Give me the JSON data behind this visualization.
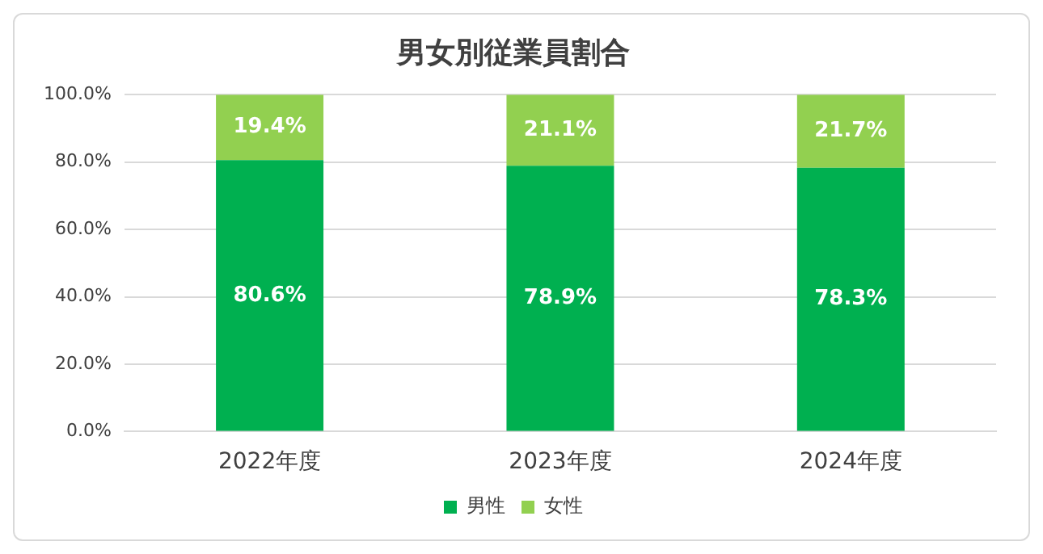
{
  "chart_data": {
    "type": "bar",
    "title": "男女別従業員割合",
    "categories": [
      "2022年度",
      "2023年度",
      "2024年度"
    ],
    "stacked": true,
    "series": [
      {
        "name": "男性",
        "color": "#00b050",
        "values": [
          80.6,
          78.9,
          78.3
        ],
        "value_labels": [
          "80.6%",
          "78.9%",
          "78.3%"
        ]
      },
      {
        "name": "女性",
        "color": "#92d050",
        "values": [
          19.4,
          21.1,
          21.7
        ],
        "value_labels": [
          "19.4%",
          "21.1%",
          "21.7%"
        ]
      }
    ],
    "ylim": [
      0,
      100
    ],
    "yticks": [
      {
        "value": 0,
        "label": "0.0%"
      },
      {
        "value": 20,
        "label": "20.0%"
      },
      {
        "value": 40,
        "label": "40.0%"
      },
      {
        "value": 60,
        "label": "60.0%"
      },
      {
        "value": 80,
        "label": "80.0%"
      },
      {
        "value": 100,
        "label": "100.0%"
      }
    ],
    "grid": "y",
    "legend": "bottom"
  }
}
